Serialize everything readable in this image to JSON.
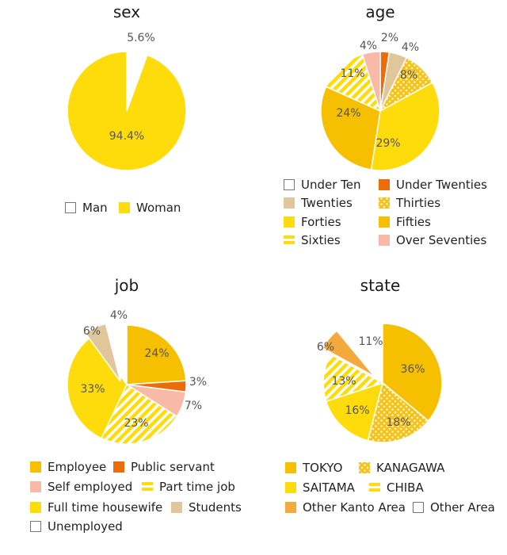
{
  "colors": {
    "empty": "#ffffff",
    "orange": "#ec6c0a",
    "tan": "#e0c69a",
    "gold": "#f6bf00",
    "yellow": "#fedc0c",
    "amber": "#f3a93b",
    "pink": "#f8b9a6",
    "outline": "#777777"
  },
  "chart_data": [
    {
      "type": "pie",
      "title": "sex",
      "slices": [
        {
          "name": "Man",
          "value": 5.6,
          "label": "5.6%",
          "fill": "empty"
        },
        {
          "name": "Woman",
          "value": 94.4,
          "label": "94.4%",
          "fill": "yellow"
        }
      ],
      "legend": [
        {
          "name": "Man",
          "fill": "empty"
        },
        {
          "name": "Woman",
          "fill": "yellow"
        }
      ]
    },
    {
      "type": "pie",
      "title": "age",
      "slices": [
        {
          "name": "Under Ten",
          "value": 0,
          "label": "",
          "fill": "empty"
        },
        {
          "name": "Under Twenties",
          "value": 2,
          "label": "2%",
          "fill": "orange"
        },
        {
          "name": "Twenties",
          "value": 4,
          "label": "4%",
          "fill": "tan"
        },
        {
          "name": "Thirties",
          "value": 8,
          "label": "8%",
          "fill": "dots"
        },
        {
          "name": "Forties",
          "value": 29,
          "label": "29%",
          "fill": "yellow"
        },
        {
          "name": "Fifties",
          "value": 24,
          "label": "24%",
          "fill": "gold"
        },
        {
          "name": "Sixties",
          "value": 11,
          "label": "11%",
          "fill": "stripes"
        },
        {
          "name": "Over Seventies",
          "value": 4,
          "label": "4%",
          "fill": "pink"
        }
      ],
      "display_order": [
        0,
        1,
        2,
        3,
        4,
        5,
        6,
        7
      ],
      "label_order_note": "",
      "legend": [
        {
          "name": "Under Ten",
          "fill": "empty"
        },
        {
          "name": "Under Twenties",
          "fill": "orange"
        },
        {
          "name": "Twenties",
          "fill": "tan"
        },
        {
          "name": "Thirties",
          "fill": "dots"
        },
        {
          "name": "Forties",
          "fill": "yellow"
        },
        {
          "name": "Fifties",
          "fill": "gold"
        },
        {
          "name": "Sixties",
          "fill": "stripes"
        },
        {
          "name": "Over Seventies",
          "fill": "pink"
        }
      ]
    },
    {
      "type": "pie",
      "title": "job",
      "slices": [
        {
          "name": "Employee",
          "value": 24,
          "label": "24%",
          "fill": "gold"
        },
        {
          "name": "Public servant",
          "value": 3,
          "label": "3%",
          "fill": "orange"
        },
        {
          "name": "Self employed",
          "value": 7,
          "label": "7%",
          "fill": "pink"
        },
        {
          "name": "Part time job",
          "value": 23,
          "label": "23%",
          "fill": "stripes"
        },
        {
          "name": "Full time housewife",
          "value": 33,
          "label": "33%",
          "fill": "yellow"
        },
        {
          "name": "Students",
          "value": 6,
          "label": "6%",
          "fill": "tan"
        },
        {
          "name": "Unemployed",
          "value": 4,
          "label": "4%",
          "fill": "empty"
        }
      ],
      "legend": [
        {
          "name": "Employee",
          "fill": "gold"
        },
        {
          "name": "Public servant",
          "fill": "orange"
        },
        {
          "name": "Self employed",
          "fill": "pink"
        },
        {
          "name": "Part time job",
          "fill": "stripes"
        },
        {
          "name": "Full time housewife",
          "fill": "yellow"
        },
        {
          "name": "Students",
          "fill": "tan"
        },
        {
          "name": "Unemployed",
          "fill": "empty"
        }
      ]
    },
    {
      "type": "pie",
      "title": "state",
      "slices": [
        {
          "name": "TOKYO",
          "value": 36,
          "label": "36%",
          "fill": "gold"
        },
        {
          "name": "KANAGAWA",
          "value": 18,
          "label": "18%",
          "fill": "dots"
        },
        {
          "name": "SAITAMA",
          "value": 16,
          "label": "16%",
          "fill": "yellow"
        },
        {
          "name": "CHIBA",
          "value": 13,
          "label": "13%",
          "fill": "stripes"
        },
        {
          "name": "Other Kanto Area",
          "value": 6,
          "label": "6%",
          "fill": "amber"
        },
        {
          "name": "Other Area",
          "value": 11,
          "label": "11%",
          "fill": "empty"
        }
      ],
      "legend": [
        {
          "name": "TOKYO",
          "fill": "gold"
        },
        {
          "name": "KANAGAWA",
          "fill": "dots"
        },
        {
          "name": "SAITAMA",
          "fill": "yellow"
        },
        {
          "name": "CHIBA",
          "fill": "stripes"
        },
        {
          "name": "Other Kanto Area",
          "fill": "amber"
        },
        {
          "name": "Other Area",
          "fill": "empty"
        }
      ]
    }
  ]
}
